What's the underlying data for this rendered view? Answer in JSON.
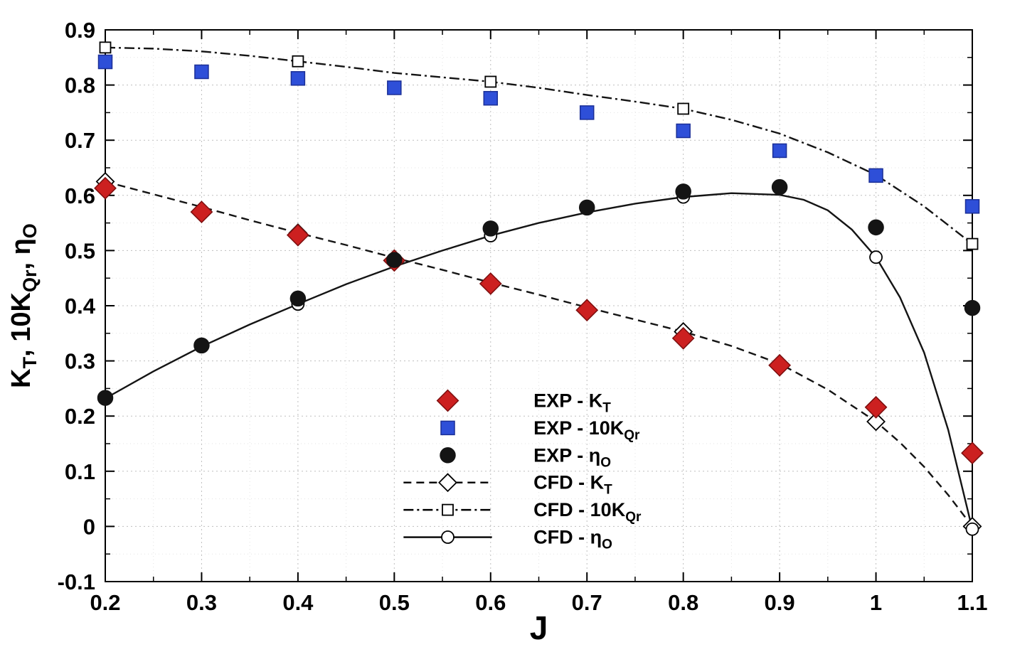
{
  "chart_data": {
    "type": "line",
    "title": "",
    "xlabel": "J",
    "ylabel_parts": [
      [
        "K",
        false
      ],
      [
        "T",
        true
      ],
      [
        ", 10K",
        false
      ],
      [
        "Qr",
        true
      ],
      [
        ", η",
        false
      ],
      [
        "O",
        true
      ]
    ],
    "xlim": [
      0.2,
      1.1
    ],
    "ylim": [
      -0.1,
      0.9
    ],
    "xticks": [
      0.2,
      0.3,
      0.4,
      0.5,
      0.6,
      0.7,
      0.8,
      0.9,
      1.0,
      1.1
    ],
    "xtick_labels": [
      "0.2",
      "0.3",
      "0.4",
      "0.5",
      "0.6",
      "0.7",
      "0.8",
      "0.9",
      "1",
      "1.1"
    ],
    "yticks": [
      -0.1,
      0,
      0.1,
      0.2,
      0.3,
      0.4,
      0.5,
      0.6,
      0.7,
      0.8,
      0.9
    ],
    "ytick_labels": [
      "-0.1",
      "0",
      "0.1",
      "0.2",
      "0.3",
      "0.4",
      "0.5",
      "0.6",
      "0.7",
      "0.8",
      "0.9"
    ],
    "grid": true,
    "legend_position": "inside-lower-middle",
    "colors": {
      "axis": "#000000",
      "grid_major": "#bfbfbf",
      "grid_minor": "#e3e3e3",
      "exp_kt_fill": "#cc2020",
      "exp_kt_stroke": "#7d0f0f",
      "exp_kq_fill": "#2e4fd8",
      "exp_kq_stroke": "#1b2f97",
      "exp_eta_fill": "#141414",
      "cfd_line": "#141414"
    },
    "series": [
      {
        "name": "EXP - KT",
        "kind": "scatter",
        "marker": "diamond",
        "fill": "#cc2020",
        "stroke": "#7d0f0f",
        "x": [
          0.2,
          0.3,
          0.4,
          0.5,
          0.6,
          0.7,
          0.8,
          0.9,
          1.0,
          1.1
        ],
        "y": [
          0.613,
          0.57,
          0.528,
          0.482,
          0.44,
          0.392,
          0.341,
          0.292,
          0.216,
          0.133
        ]
      },
      {
        "name": "EXP - 10KQr",
        "kind": "scatter",
        "marker": "square",
        "fill": "#2e4fd8",
        "stroke": "#1b2f97",
        "x": [
          0.2,
          0.3,
          0.4,
          0.5,
          0.6,
          0.7,
          0.8,
          0.9,
          1.0,
          1.1
        ],
        "y": [
          0.842,
          0.824,
          0.812,
          0.795,
          0.776,
          0.75,
          0.717,
          0.681,
          0.636,
          0.58
        ]
      },
      {
        "name": "EXP - etaO",
        "kind": "scatter",
        "marker": "circle",
        "fill": "#141414",
        "stroke": "#141414",
        "x": [
          0.2,
          0.3,
          0.4,
          0.5,
          0.6,
          0.7,
          0.8,
          0.9,
          1.0,
          1.1
        ],
        "y": [
          0.233,
          0.328,
          0.413,
          0.483,
          0.54,
          0.578,
          0.607,
          0.615,
          0.542,
          0.396
        ]
      },
      {
        "name": "CFD - KT",
        "kind": "line",
        "dash": "11 7",
        "marker": "diamond",
        "line_x": [
          0.2,
          0.25,
          0.3,
          0.35,
          0.4,
          0.45,
          0.5,
          0.55,
          0.6,
          0.65,
          0.7,
          0.75,
          0.8,
          0.85,
          0.9,
          0.95,
          1.0,
          1.025,
          1.05,
          1.075,
          1.1
        ],
        "line_y": [
          0.625,
          0.602,
          0.579,
          0.555,
          0.532,
          0.51,
          0.487,
          0.465,
          0.442,
          0.42,
          0.397,
          0.375,
          0.353,
          0.327,
          0.295,
          0.248,
          0.19,
          0.152,
          0.108,
          0.057,
          0.0
        ],
        "marker_x": [
          0.2,
          0.4,
          0.6,
          0.8,
          0.9,
          1.0,
          1.1
        ],
        "marker_y": [
          0.625,
          0.532,
          0.442,
          0.353,
          0.295,
          0.19,
          0.0
        ]
      },
      {
        "name": "CFD - 10KQr",
        "kind": "line",
        "dash": "14 5 3 5",
        "marker": "square",
        "line_x": [
          0.2,
          0.25,
          0.3,
          0.35,
          0.4,
          0.45,
          0.5,
          0.55,
          0.6,
          0.65,
          0.7,
          0.75,
          0.8,
          0.85,
          0.9,
          0.95,
          1.0,
          1.05,
          1.1
        ],
        "line_y": [
          0.868,
          0.866,
          0.861,
          0.853,
          0.843,
          0.833,
          0.822,
          0.814,
          0.806,
          0.795,
          0.782,
          0.77,
          0.757,
          0.737,
          0.712,
          0.678,
          0.637,
          0.58,
          0.512
        ],
        "marker_x": [
          0.2,
          0.4,
          0.6,
          0.8,
          1.0,
          1.1
        ],
        "marker_y": [
          0.868,
          0.843,
          0.806,
          0.757,
          0.637,
          0.512
        ]
      },
      {
        "name": "CFD - etaO",
        "kind": "line",
        "dash": "",
        "marker": "circle",
        "line_x": [
          0.2,
          0.25,
          0.3,
          0.35,
          0.4,
          0.45,
          0.5,
          0.55,
          0.6,
          0.65,
          0.7,
          0.75,
          0.8,
          0.85,
          0.9,
          0.925,
          0.95,
          0.975,
          1.0,
          1.025,
          1.05,
          1.075,
          1.1
        ],
        "line_y": [
          0.232,
          0.281,
          0.326,
          0.366,
          0.403,
          0.439,
          0.471,
          0.5,
          0.527,
          0.55,
          0.569,
          0.585,
          0.597,
          0.604,
          0.601,
          0.592,
          0.573,
          0.538,
          0.488,
          0.415,
          0.315,
          0.175,
          -0.005
        ],
        "marker_x": [
          0.2,
          0.4,
          0.6,
          0.8,
          1.0,
          1.1
        ],
        "marker_y": [
          0.232,
          0.403,
          0.527,
          0.597,
          0.488,
          -0.005
        ]
      }
    ],
    "legend": {
      "entries": [
        {
          "pre": "EXP - K",
          "sub": "T",
          "marker": "diamond",
          "fill": "#cc2020",
          "stroke": "#7d0f0f"
        },
        {
          "pre": "EXP - 10K",
          "sub": "Qr",
          "marker": "square",
          "fill": "#2e4fd8",
          "stroke": "#1b2f97"
        },
        {
          "pre": "EXP - η",
          "sub": "O",
          "marker": "circle",
          "fill": "#141414",
          "stroke": "#141414"
        },
        {
          "pre": "CFD - K",
          "sub": "T",
          "marker": "diamond",
          "line": "11 7"
        },
        {
          "pre": "CFD - 10K",
          "sub": "Qr",
          "marker": "square",
          "line": "14 5 3 5"
        },
        {
          "pre": "CFD - η",
          "sub": "O",
          "marker": "circle",
          "line": ""
        }
      ]
    }
  }
}
